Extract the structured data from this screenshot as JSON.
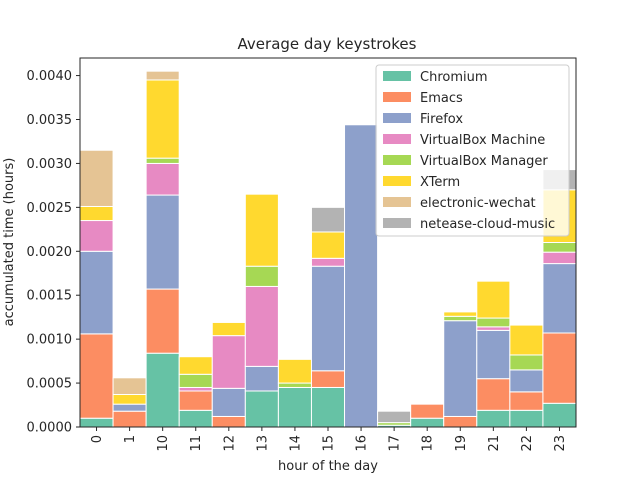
{
  "chart_data": {
    "type": "bar",
    "stacked": true,
    "title": "Average day keystrokes",
    "xlabel": "hour of the day",
    "ylabel": "accumulated time (hours)",
    "ylim": [
      0,
      0.0042
    ],
    "yticks": [
      "0.0000",
      "0.0005",
      "0.0010",
      "0.0015",
      "0.0020",
      "0.0025",
      "0.0030",
      "0.0035",
      "0.0040"
    ],
    "grid": false,
    "legend_position": "top-right",
    "categories": [
      "0",
      "1",
      "10",
      "11",
      "12",
      "13",
      "14",
      "15",
      "16",
      "17",
      "18",
      "19",
      "21",
      "22",
      "23"
    ],
    "series": [
      {
        "name": "Chromium",
        "color": "#66c2a5",
        "values": [
          0.0001,
          0.0,
          0.00084,
          0.00019,
          0.0,
          0.00041,
          0.00045,
          0.00045,
          0.0,
          2e-05,
          0.0001,
          0.0,
          0.00019,
          0.00019,
          0.00027
        ]
      },
      {
        "name": "Emacs",
        "color": "#fc8d62",
        "values": [
          0.00096,
          0.00018,
          0.00073,
          0.00022,
          0.00012,
          0.0,
          0.0,
          0.00019,
          0.0,
          0.0,
          0.00016,
          0.00012,
          0.00036,
          0.00021,
          0.0008
        ]
      },
      {
        "name": "Firefox",
        "color": "#8da0cb",
        "values": [
          0.00094,
          8e-05,
          0.00107,
          0.0,
          0.00032,
          0.00028,
          0.0,
          0.00119,
          0.00344,
          0.0,
          0.0,
          0.00109,
          0.00055,
          0.00025,
          0.00079
        ]
      },
      {
        "name": "VirtualBox Machine",
        "color": "#e78ac3",
        "values": [
          0.00035,
          0.0,
          0.00036,
          4e-05,
          0.0006,
          0.00091,
          0.0,
          9e-05,
          0.0,
          0.0,
          0.0,
          0.0,
          4e-05,
          0.0,
          0.00013
        ]
      },
      {
        "name": "VirtualBox Manager",
        "color": "#a6d854",
        "values": [
          0.0,
          0.0,
          6e-05,
          0.00015,
          0.0,
          0.00023,
          5e-05,
          0.0,
          0.0,
          3e-05,
          0.0,
          5e-05,
          0.0001,
          0.00017,
          0.00011
        ]
      },
      {
        "name": "XTerm",
        "color": "#ffd92f",
        "values": [
          0.00016,
          0.00011,
          0.00089,
          0.0002,
          0.00015,
          0.00082,
          0.00027,
          0.0003,
          0.0,
          0.0,
          0.0,
          5e-05,
          0.00042,
          0.00034,
          0.0006
        ]
      },
      {
        "name": "electronic-wechat",
        "color": "#e5c494",
        "values": [
          0.00064,
          0.00019,
          0.0001,
          0.0,
          0.0,
          0.0,
          0.0,
          0.0,
          0.0,
          0.0,
          0.0,
          0.0,
          0.0,
          0.0,
          0.0
        ]
      },
      {
        "name": "netease-cloud-music",
        "color": "#b3b3b3",
        "values": [
          0.0,
          0.0,
          0.0,
          0.0,
          0.0,
          0.0,
          0.0,
          0.00028,
          0.0,
          0.00013,
          0.0,
          0.0,
          0.0,
          0.0,
          0.00023
        ]
      }
    ]
  }
}
